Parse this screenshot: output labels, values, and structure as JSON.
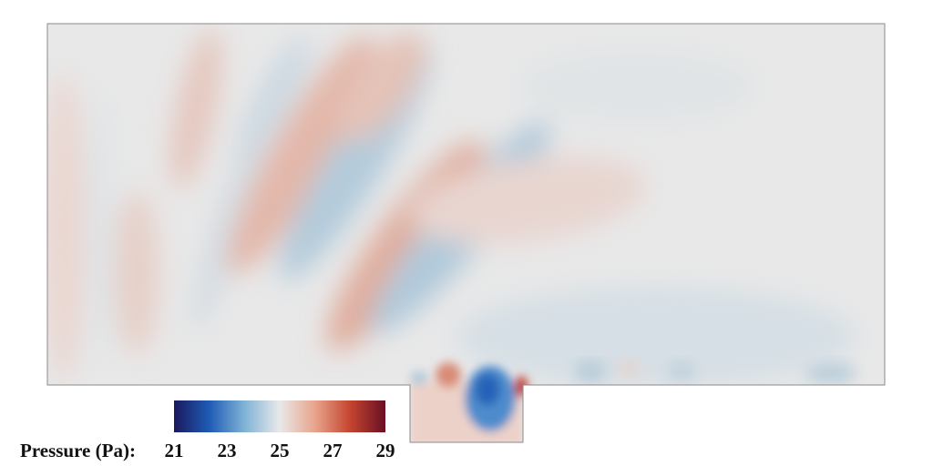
{
  "colorbar": {
    "label": "Pressure (Pa):",
    "ticks": [
      "21",
      "23",
      "25",
      "27",
      "29"
    ],
    "range": [
      21,
      29
    ],
    "colormap": [
      "#1a1a5e",
      "#1f5bb5",
      "#7fb3d6",
      "#e9e9e9",
      "#e8a48c",
      "#c4452f",
      "#6a0f24"
    ]
  },
  "field": {
    "background": "#e8e8e8",
    "outline": "#888888",
    "positive_color": "#e3b4a6",
    "negative_color": "#a8c5d8",
    "strong_negative": "#2d6fbf",
    "strong_positive": "#c93a2c"
  }
}
